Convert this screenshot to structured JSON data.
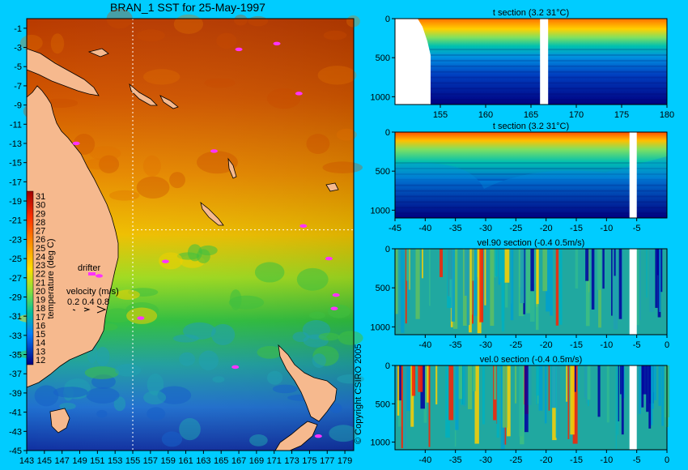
{
  "map": {
    "title": "BRAN_1 SST for 25-May-1997",
    "x_ticks": [
      "143",
      "145",
      "147",
      "149",
      "151",
      "153",
      "155",
      "157",
      "159",
      "161",
      "163",
      "165",
      "167",
      "169",
      "171",
      "173",
      "175",
      "177",
      "179"
    ],
    "y_ticks": [
      "-1",
      "-3",
      "-5",
      "-7",
      "-9",
      "-11",
      "-13",
      "-15",
      "-17",
      "-19",
      "-21",
      "-23",
      "-25",
      "-27",
      "-29",
      "-31",
      "-33",
      "-35",
      "-37",
      "-39",
      "-41",
      "-43",
      "-45"
    ],
    "lon_range": [
      143,
      180
    ],
    "lat_range": [
      0,
      -45
    ],
    "crosshair": {
      "lon": 155,
      "lat": -22
    },
    "colorbar": {
      "label": "temperature (deg C)",
      "ticks": [
        "31",
        "30",
        "29",
        "28",
        "27",
        "26",
        "25",
        "24",
        "23",
        "22",
        "21",
        "20",
        "19",
        "18",
        "17",
        "16",
        "15",
        "14",
        "13",
        "12"
      ]
    },
    "legend": {
      "drifter_label": "drifter",
      "velocity_label": "velocity (m/s)",
      "velocity_values": "0.2 0.4 0.8"
    },
    "copyright": "© Copyright CSIRO 2005",
    "drifters": [
      {
        "lon": 167.0,
        "lat": -3.2
      },
      {
        "lon": 171.3,
        "lat": -2.6
      },
      {
        "lon": 173.8,
        "lat": -7.8
      },
      {
        "lon": 148.6,
        "lat": -13.0
      },
      {
        "lon": 164.2,
        "lat": -13.8
      },
      {
        "lon": 174.3,
        "lat": -21.6
      },
      {
        "lon": 158.7,
        "lat": -25.3
      },
      {
        "lon": 177.2,
        "lat": -25.0
      },
      {
        "lon": 151.2,
        "lat": -26.8
      },
      {
        "lon": 178.0,
        "lat": -28.8
      },
      {
        "lon": 177.8,
        "lat": -30.2
      },
      {
        "lon": 155.9,
        "lat": -31.2
      },
      {
        "lon": 166.6,
        "lat": -36.3
      },
      {
        "lon": 176.0,
        "lat": -43.5
      }
    ],
    "colors": {
      "land": "#f6b98e",
      "drifter": "#ff33ff",
      "background": "#00ccff"
    }
  },
  "sections": [
    {
      "title": "t section (3.2      31°C)",
      "x_ticks": [
        "155",
        "160",
        "165",
        "170",
        "175",
        "180"
      ],
      "y_ticks": [
        "0",
        "500",
        "1000"
      ],
      "x_range": [
        150,
        180
      ],
      "y_range": [
        0,
        1100
      ],
      "kind": "temperature"
    },
    {
      "title": "t section (3.2      31°C)",
      "x_ticks": [
        "-45",
        "-40",
        "-35",
        "-30",
        "-25",
        "-20",
        "-15",
        "-10",
        "-5"
      ],
      "y_ticks": [
        "0",
        "500",
        "1000"
      ],
      "x_range": [
        -45,
        0
      ],
      "y_range": [
        0,
        1100
      ],
      "kind": "temperature"
    },
    {
      "title": "vel.90 section (-0.4      0.5m/s)",
      "x_ticks": [
        "-40",
        "-35",
        "-30",
        "-25",
        "-20",
        "-15",
        "-10",
        "-5",
        "0"
      ],
      "y_ticks": [
        "0",
        "500",
        "1000"
      ],
      "x_range": [
        -45,
        0
      ],
      "y_range": [
        0,
        1100
      ],
      "kind": "velocity"
    },
    {
      "title": "vel.0 section (-0.4      0.5m/s)",
      "x_ticks": [
        "-40",
        "-35",
        "-30",
        "-25",
        "-20",
        "-15",
        "-10",
        "-5",
        "0"
      ],
      "y_ticks": [
        "0",
        "500",
        "1000"
      ],
      "x_range": [
        -45,
        0
      ],
      "y_range": [
        0,
        1100
      ],
      "kind": "velocity"
    }
  ]
}
